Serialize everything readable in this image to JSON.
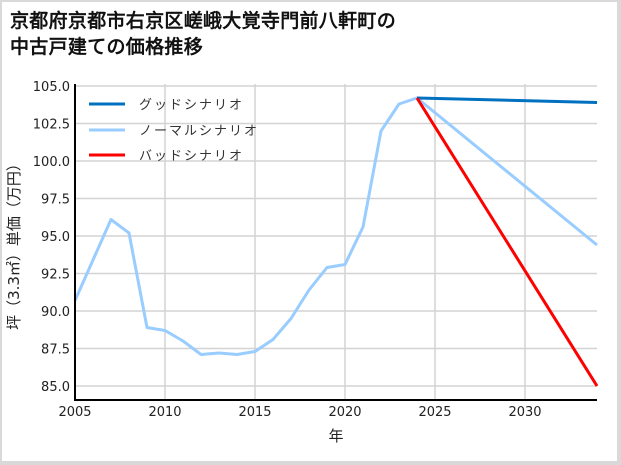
{
  "chart_data": {
    "type": "line",
    "title": "京都府京都市右京区嵯峨大覚寺門前八軒町の\n中古戸建ての価格推移",
    "xlabel": "年",
    "ylabel": "坪（3.3㎡）単価（万円）",
    "xlim": [
      2005,
      2034
    ],
    "ylim": [
      84.5,
      105.0
    ],
    "x_ticks": [
      "2005",
      "2010",
      "2015",
      "2020",
      "2025",
      "2030"
    ],
    "y_ticks": [
      "85.0",
      "87.5",
      "90.0",
      "92.5",
      "95.0",
      "97.5",
      "100.0",
      "102.5",
      "105.0"
    ],
    "grid": true,
    "legend_position": "upper left",
    "series": [
      {
        "name": "グッドシナリオ",
        "color": "#0070c0",
        "x": [
          2024,
          2034
        ],
        "values": [
          104.2,
          103.9
        ]
      },
      {
        "name": "ノーマルシナリオ",
        "color": "#99ccff",
        "x": [
          2005,
          2006,
          2007,
          2008,
          2009,
          2010,
          2011,
          2012,
          2013,
          2014,
          2015,
          2016,
          2017,
          2018,
          2019,
          2020,
          2021,
          2022,
          2023,
          2024,
          2034
        ],
        "values": [
          90.7,
          93.4,
          96.1,
          95.2,
          88.9,
          88.7,
          88.0,
          87.1,
          87.2,
          87.1,
          87.3,
          88.1,
          89.5,
          91.4,
          92.9,
          93.1,
          95.6,
          102.0,
          103.8,
          104.2,
          94.4
        ]
      },
      {
        "name": "バッドシナリオ",
        "color": "#ff0000",
        "x": [
          2024,
          2034
        ],
        "values": [
          104.2,
          85.0
        ]
      }
    ]
  },
  "legend": {
    "items": [
      {
        "label": "グッドシナリオ"
      },
      {
        "label": "ノーマルシナリオ"
      },
      {
        "label": "バッドシナリオ"
      }
    ]
  }
}
